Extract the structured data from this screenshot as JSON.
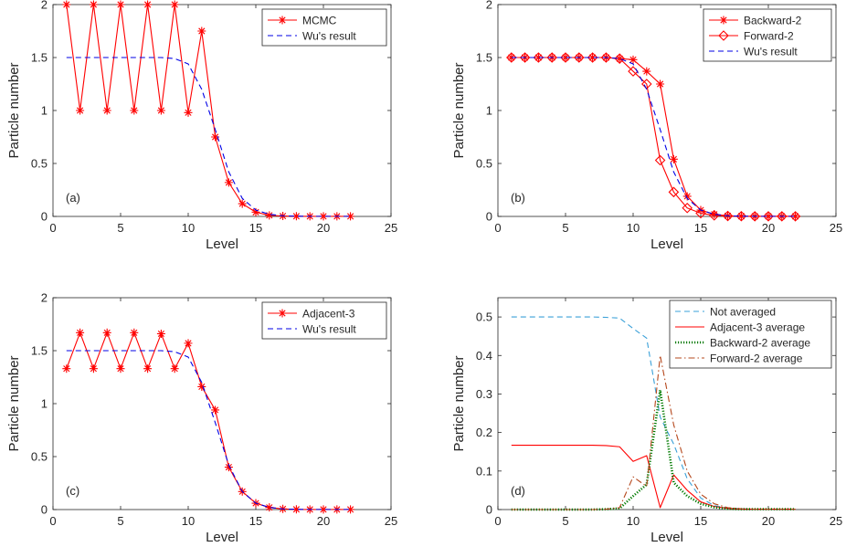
{
  "colors": {
    "red": "#ff0000",
    "blue": "#0000e6",
    "lightblue": "#3aa0d8",
    "green": "#007a00",
    "brown": "#b5481d",
    "axis": "#262626"
  },
  "chart_data": [
    {
      "type": "line",
      "panel_tag": "(a)",
      "xlabel": "Level",
      "ylabel": "Particle number",
      "xlim": [
        0,
        25
      ],
      "ylim": [
        0,
        2
      ],
      "xticks": [
        0,
        5,
        10,
        15,
        20,
        25
      ],
      "yticks": [
        0,
        0.5,
        1,
        1.5,
        2
      ],
      "ytick_labels": [
        "0",
        "0.5",
        "1",
        "1.5",
        "2"
      ],
      "legend_position": "top-right",
      "x": [
        1,
        2,
        3,
        4,
        5,
        6,
        7,
        8,
        9,
        10,
        11,
        12,
        13,
        14,
        15,
        16,
        17,
        18,
        19,
        20,
        21,
        22
      ],
      "series": [
        {
          "name": "MCMC",
          "style": "solid-star",
          "color": "red",
          "values": [
            2,
            1,
            2,
            1,
            2,
            1,
            2,
            1,
            2,
            0.98,
            1.75,
            0.75,
            0.32,
            0.12,
            0.04,
            0.01,
            0.004,
            0.002,
            0.001,
            0.001,
            0.001,
            0.001
          ]
        },
        {
          "name": "Wu's result",
          "style": "dashed",
          "color": "blue",
          "values": [
            1.5,
            1.5,
            1.5,
            1.5,
            1.5,
            1.5,
            1.5,
            1.5,
            1.49,
            1.44,
            1.2,
            0.82,
            0.42,
            0.17,
            0.06,
            0.02,
            0.006,
            0.002,
            0.001,
            0.001,
            0.001,
            0.001
          ]
        }
      ]
    },
    {
      "type": "line",
      "panel_tag": "(b)",
      "xlabel": "Level",
      "ylabel": "Particle number",
      "xlim": [
        0,
        25
      ],
      "ylim": [
        0,
        2
      ],
      "xticks": [
        0,
        5,
        10,
        15,
        20,
        25
      ],
      "yticks": [
        0,
        0.5,
        1,
        1.5,
        2
      ],
      "ytick_labels": [
        "0",
        "0.5",
        "1",
        "1.5",
        "2"
      ],
      "legend_position": "top-right",
      "x": [
        1,
        2,
        3,
        4,
        5,
        6,
        7,
        8,
        9,
        10,
        11,
        12,
        13,
        14,
        15,
        16,
        17,
        18,
        19,
        20,
        21,
        22
      ],
      "series": [
        {
          "name": "Backward-2",
          "style": "solid-star",
          "color": "red",
          "values": [
            1.5,
            1.5,
            1.5,
            1.5,
            1.5,
            1.5,
            1.5,
            1.5,
            1.49,
            1.48,
            1.37,
            1.25,
            0.54,
            0.19,
            0.06,
            0.02,
            0.006,
            0.002,
            0.001,
            0.001,
            0.001,
            0.001
          ]
        },
        {
          "name": "Forward-2",
          "style": "solid-diamond",
          "color": "red",
          "values": [
            1.5,
            1.5,
            1.5,
            1.5,
            1.5,
            1.5,
            1.5,
            1.5,
            1.49,
            1.37,
            1.25,
            0.53,
            0.23,
            0.08,
            0.03,
            0.01,
            0.004,
            0.002,
            0.001,
            0.001,
            0.001,
            0.001
          ]
        },
        {
          "name": "Wu's result",
          "style": "dashed",
          "color": "blue",
          "values": [
            1.5,
            1.5,
            1.5,
            1.5,
            1.5,
            1.5,
            1.5,
            1.5,
            1.49,
            1.44,
            1.2,
            0.82,
            0.42,
            0.17,
            0.06,
            0.02,
            0.006,
            0.002,
            0.001,
            0.001,
            0.001,
            0.001
          ]
        }
      ]
    },
    {
      "type": "line",
      "panel_tag": "(c)",
      "xlabel": "Level",
      "ylabel": "Particle number",
      "xlim": [
        0,
        25
      ],
      "ylim": [
        0,
        2
      ],
      "xticks": [
        0,
        5,
        10,
        15,
        20,
        25
      ],
      "yticks": [
        0,
        0.5,
        1,
        1.5,
        2
      ],
      "ytick_labels": [
        "0",
        "0.5",
        "1",
        "1.5",
        "2"
      ],
      "legend_position": "top-right",
      "x": [
        1,
        2,
        3,
        4,
        5,
        6,
        7,
        8,
        9,
        10,
        11,
        12,
        13,
        14,
        15,
        16,
        17,
        18,
        19,
        20,
        21,
        22
      ],
      "series": [
        {
          "name": "Adjacent-3",
          "style": "solid-star",
          "color": "red",
          "values": [
            1.33,
            1.67,
            1.33,
            1.67,
            1.33,
            1.67,
            1.33,
            1.66,
            1.33,
            1.57,
            1.16,
            0.94,
            0.4,
            0.17,
            0.06,
            0.02,
            0.006,
            0.002,
            0.001,
            0.001,
            0.001,
            0.001
          ]
        },
        {
          "name": "Wu's result",
          "style": "dashed",
          "color": "blue",
          "values": [
            1.5,
            1.5,
            1.5,
            1.5,
            1.5,
            1.5,
            1.5,
            1.5,
            1.49,
            1.44,
            1.2,
            0.82,
            0.42,
            0.17,
            0.06,
            0.02,
            0.006,
            0.002,
            0.001,
            0.001,
            0.001,
            0.001
          ]
        }
      ]
    },
    {
      "type": "line",
      "panel_tag": "(d)",
      "xlabel": "Level",
      "ylabel": "Particle number",
      "xlim": [
        0,
        25
      ],
      "ylim": [
        0,
        0.55
      ],
      "xticks": [
        0,
        5,
        10,
        15,
        20,
        25
      ],
      "yticks": [
        0,
        0.1,
        0.2,
        0.3,
        0.4,
        0.5
      ],
      "ytick_labels": [
        "0",
        "0.1",
        "0.2",
        "0.3",
        "0.4",
        "0.5"
      ],
      "legend_position": "top-right",
      "x": [
        1,
        2,
        3,
        4,
        5,
        6,
        7,
        8,
        9,
        10,
        11,
        12,
        13,
        14,
        15,
        16,
        17,
        18,
        19,
        20,
        21,
        22
      ],
      "series": [
        {
          "name": "Not averaged",
          "style": "dashed",
          "color": "lightblue",
          "values": [
            0.5,
            0.5,
            0.5,
            0.5,
            0.5,
            0.5,
            0.5,
            0.499,
            0.497,
            0.47,
            0.445,
            0.24,
            0.17,
            0.08,
            0.03,
            0.01,
            0.004,
            0.002,
            0.001,
            0.001,
            0.001,
            0.001
          ]
        },
        {
          "name": "Adjacent-3 average",
          "style": "solid",
          "color": "red",
          "values": [
            0.167,
            0.167,
            0.167,
            0.167,
            0.167,
            0.167,
            0.167,
            0.166,
            0.163,
            0.125,
            0.14,
            0.005,
            0.09,
            0.05,
            0.02,
            0.008,
            0.003,
            0.001,
            0.001,
            0.001,
            0.001,
            0.001
          ]
        },
        {
          "name": "Backward-2 average",
          "style": "dotted",
          "color": "green",
          "values": [
            0,
            0,
            0,
            0,
            0,
            0,
            0,
            0.001,
            0.003,
            0.035,
            0.065,
            0.31,
            0.07,
            0.035,
            0.015,
            0.006,
            0.002,
            0.001,
            0.001,
            0.001,
            0.001,
            0.001
          ]
        },
        {
          "name": "Forward-2 average",
          "style": "dashdot",
          "color": "brown",
          "values": [
            0,
            0,
            0,
            0,
            0,
            0,
            0,
            0.001,
            0.005,
            0.085,
            0.06,
            0.4,
            0.22,
            0.1,
            0.04,
            0.015,
            0.005,
            0.002,
            0.001,
            0.001,
            0.001,
            0.001
          ]
        }
      ]
    }
  ]
}
